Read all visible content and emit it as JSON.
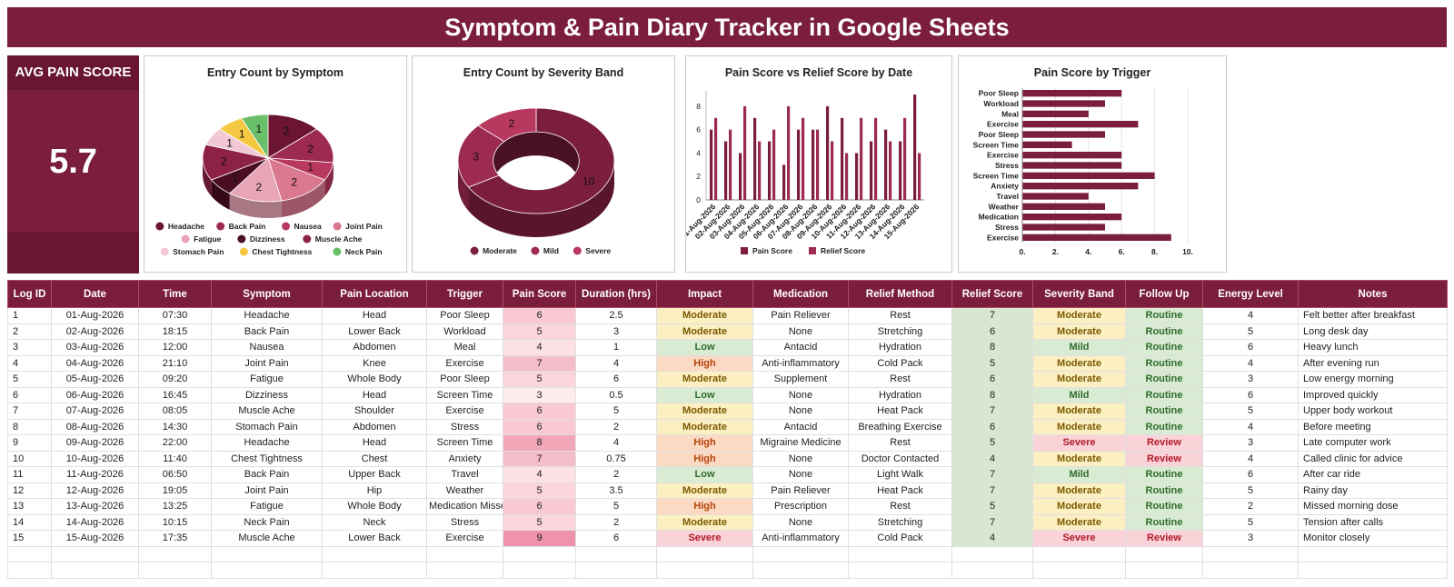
{
  "page": {
    "title": "Symptom & Pain Diary Tracker in Google Sheets"
  },
  "kpi": {
    "label": "AVG PAIN SCORE",
    "value": "5.7"
  },
  "colors": {
    "primary": "#7b1d3c",
    "dark": "#691630",
    "headache": "#6b1530",
    "back_pain": "#9c2a52",
    "nausea": "#b8385f",
    "joint_pain": "#d9788f",
    "fatigue": "#e8a5b8",
    "dizziness": "#4a0d22",
    "muscle_ache": "#8e2147",
    "stomach_pain": "#f1c8d3",
    "chest_tightness": "#f5c842",
    "neck_pain": "#6abf69",
    "pain_score": "#7b1d3c",
    "relief_score": "#9c2a52"
  },
  "chart_data": [
    {
      "type": "pie",
      "title": "Entry Count by Symptom",
      "categories": [
        "Headache",
        "Back Pain",
        "Nausea",
        "Joint Pain",
        "Fatigue",
        "Dizziness",
        "Muscle Ache",
        "Stomach Pain",
        "Chest Tightness",
        "Neck Pain"
      ],
      "values": [
        2,
        2,
        1,
        2,
        2,
        1,
        2,
        1,
        1,
        1
      ],
      "legend": "bottom"
    },
    {
      "type": "pie",
      "title": "Entry Count by Severity Band",
      "categories": [
        "Moderate",
        "Mild",
        "Severe"
      ],
      "values": [
        10,
        3,
        2
      ],
      "donut": true,
      "legend": "bottom"
    },
    {
      "type": "bar",
      "title": "Pain Score vs Relief Score by Date",
      "categories": [
        "01-Aug-2026",
        "02-Aug-2026",
        "03-Aug-2026",
        "04-Aug-2026",
        "05-Aug-2026",
        "06-Aug-2026",
        "07-Aug-2026",
        "08-Aug-2026",
        "09-Aug-2026",
        "10-Aug-2026",
        "11-Aug-2026",
        "12-Aug-2026",
        "13-Aug-2026",
        "14-Aug-2026",
        "15-Aug-2026"
      ],
      "series": [
        {
          "name": "Pain Score",
          "values": [
            6,
            5,
            4,
            7,
            5,
            3,
            6,
            6,
            8,
            7,
            4,
            5,
            6,
            5,
            9
          ]
        },
        {
          "name": "Relief Score",
          "values": [
            7,
            6,
            8,
            5,
            6,
            8,
            7,
            6,
            5,
            4,
            7,
            7,
            5,
            7,
            4
          ]
        }
      ],
      "ylim": [
        0,
        9
      ],
      "yticks": [
        "0",
        "2",
        "4",
        "6",
        "8"
      ],
      "legend": "bottom"
    },
    {
      "type": "bar",
      "orientation": "horizontal",
      "title": "Pain Score by Trigger",
      "categories": [
        "Poor Sleep",
        "Workload",
        "Meal",
        "Exercise",
        "Poor Sleep",
        "Screen Time",
        "Exercise",
        "Stress",
        "Screen Time",
        "Anxiety",
        "Travel",
        "Weather",
        "Medication",
        "Stress",
        "Exercise"
      ],
      "values": [
        6,
        5,
        4,
        7,
        5,
        3,
        6,
        6,
        8,
        7,
        4,
        5,
        6,
        5,
        9
      ],
      "xlim": [
        0,
        10
      ],
      "xticks": [
        "0.",
        "2.",
        "4.",
        "6.",
        "8.",
        "10."
      ]
    }
  ],
  "table": {
    "headers": [
      "Log ID",
      "Date",
      "Time",
      "Symptom",
      "Pain Location",
      "Trigger",
      "Pain Score",
      "Duration (hrs)",
      "Impact",
      "Medication",
      "Relief Method",
      "Relief Score",
      "Severity Band",
      "Follow Up",
      "Energy Level",
      "Notes"
    ],
    "rows": [
      [
        "1",
        "01-Aug-2026",
        "07:30",
        "Headache",
        "Head",
        "Poor Sleep",
        "6",
        "2.5",
        "Moderate",
        "Pain Reliever",
        "Rest",
        "7",
        "Moderate",
        "Routine",
        "4",
        "Felt better after breakfast"
      ],
      [
        "2",
        "02-Aug-2026",
        "18:15",
        "Back Pain",
        "Lower Back",
        "Workload",
        "5",
        "3",
        "Moderate",
        "None",
        "Stretching",
        "6",
        "Moderate",
        "Routine",
        "5",
        "Long desk day"
      ],
      [
        "3",
        "03-Aug-2026",
        "12:00",
        "Nausea",
        "Abdomen",
        "Meal",
        "4",
        "1",
        "Low",
        "Antacid",
        "Hydration",
        "8",
        "Mild",
        "Routine",
        "6",
        "Heavy lunch"
      ],
      [
        "4",
        "04-Aug-2026",
        "21:10",
        "Joint Pain",
        "Knee",
        "Exercise",
        "7",
        "4",
        "High",
        "Anti-inflammatory",
        "Cold Pack",
        "5",
        "Moderate",
        "Routine",
        "4",
        "After evening run"
      ],
      [
        "5",
        "05-Aug-2026",
        "09:20",
        "Fatigue",
        "Whole Body",
        "Poor Sleep",
        "5",
        "6",
        "Moderate",
        "Supplement",
        "Rest",
        "6",
        "Moderate",
        "Routine",
        "3",
        "Low energy morning"
      ],
      [
        "6",
        "06-Aug-2026",
        "16:45",
        "Dizziness",
        "Head",
        "Screen Time",
        "3",
        "0.5",
        "Low",
        "None",
        "Hydration",
        "8",
        "Mild",
        "Routine",
        "6",
        "Improved quickly"
      ],
      [
        "7",
        "07-Aug-2026",
        "08:05",
        "Muscle Ache",
        "Shoulder",
        "Exercise",
        "6",
        "5",
        "Moderate",
        "None",
        "Heat Pack",
        "7",
        "Moderate",
        "Routine",
        "5",
        "Upper body workout"
      ],
      [
        "8",
        "08-Aug-2026",
        "14:30",
        "Stomach Pain",
        "Abdomen",
        "Stress",
        "6",
        "2",
        "Moderate",
        "Antacid",
        "Breathing Exercise",
        "6",
        "Moderate",
        "Routine",
        "4",
        "Before meeting"
      ],
      [
        "9",
        "09-Aug-2026",
        "22:00",
        "Headache",
        "Head",
        "Screen Time",
        "8",
        "4",
        "High",
        "Migraine Medicine",
        "Rest",
        "5",
        "Severe",
        "Review",
        "3",
        "Late computer work"
      ],
      [
        "10",
        "10-Aug-2026",
        "11:40",
        "Chest Tightness",
        "Chest",
        "Anxiety",
        "7",
        "0.75",
        "High",
        "None",
        "Doctor Contacted",
        "4",
        "Moderate",
        "Review",
        "4",
        "Called clinic for advice"
      ],
      [
        "11",
        "11-Aug-2026",
        "06:50",
        "Back Pain",
        "Upper Back",
        "Travel",
        "4",
        "2",
        "Low",
        "None",
        "Light Walk",
        "7",
        "Mild",
        "Routine",
        "6",
        "After car ride"
      ],
      [
        "12",
        "12-Aug-2026",
        "19:05",
        "Joint Pain",
        "Hip",
        "Weather",
        "5",
        "3.5",
        "Moderate",
        "Pain Reliever",
        "Heat Pack",
        "7",
        "Moderate",
        "Routine",
        "5",
        "Rainy day"
      ],
      [
        "13",
        "13-Aug-2026",
        "13:25",
        "Fatigue",
        "Whole Body",
        "Medication Missed",
        "6",
        "5",
        "High",
        "Prescription",
        "Rest",
        "5",
        "Moderate",
        "Routine",
        "2",
        "Missed morning dose"
      ],
      [
        "14",
        "14-Aug-2026",
        "10:15",
        "Neck Pain",
        "Neck",
        "Stress",
        "5",
        "2",
        "Moderate",
        "None",
        "Stretching",
        "7",
        "Moderate",
        "Routine",
        "5",
        "Tension after calls"
      ],
      [
        "15",
        "15-Aug-2026",
        "17:35",
        "Muscle Ache",
        "Lower Back",
        "Exercise",
        "9",
        "6",
        "Severe",
        "Anti-inflammatory",
        "Cold Pack",
        "4",
        "Severe",
        "Review",
        "3",
        "Monitor closely"
      ]
    ]
  }
}
